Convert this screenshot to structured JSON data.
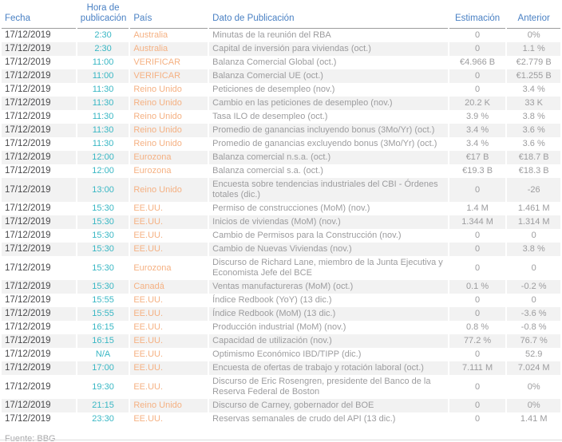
{
  "colors": {
    "header_text": "#4A81C4",
    "time_text": "#39B7C4",
    "country_text": "#F5B183",
    "date_text": "#4A4A4C",
    "body_text": "#9C9C9E",
    "row_stripe": "#F2F2F2",
    "header_rule": "#9B9B9B",
    "footer_text": "#A9A9AB"
  },
  "footer": {
    "source_label": "Fuente: BBG"
  },
  "table": {
    "columns": [
      {
        "key": "fecha",
        "label": "Fecha"
      },
      {
        "key": "hora",
        "label": "Hora de publicación"
      },
      {
        "key": "pais",
        "label": "País"
      },
      {
        "key": "dato",
        "label": "Dato de Publicación"
      },
      {
        "key": "estimacion",
        "label": "Estimación"
      },
      {
        "key": "anterior",
        "label": "Anterior"
      }
    ],
    "rows": [
      {
        "fecha": "17/12/2019",
        "hora": "2:30",
        "pais": "Australia",
        "dato": "Minutas de la reunión del RBA",
        "estimacion": "0",
        "anterior": "0%"
      },
      {
        "fecha": "17/12/2019",
        "hora": "2:30",
        "pais": "Australia",
        "dato": "Capital de inversión para viviendas (oct.)",
        "estimacion": "0",
        "anterior": "1.1 %"
      },
      {
        "fecha": "17/12/2019",
        "hora": "11:00",
        "pais": "VERIFICAR",
        "dato": "Balanza Comercial Global (oct.)",
        "estimacion": "€4.966 B",
        "anterior": "€2.779 B"
      },
      {
        "fecha": "17/12/2019",
        "hora": "11:00",
        "pais": "VERIFICAR",
        "dato": "Balanza Comercial UE (oct.)",
        "estimacion": "0",
        "anterior": "€1.255 B"
      },
      {
        "fecha": "17/12/2019",
        "hora": "11:30",
        "pais": "Reino Unido",
        "dato": "Peticiones de desempleo (nov.)",
        "estimacion": "0",
        "anterior": "3.4 %"
      },
      {
        "fecha": "17/12/2019",
        "hora": "11:30",
        "pais": "Reino Unido",
        "dato": "Cambio en las peticiones de desempleo (nov.)",
        "estimacion": "20.2 K",
        "anterior": "33 K"
      },
      {
        "fecha": "17/12/2019",
        "hora": "11:30",
        "pais": "Reino Unido",
        "dato": "Tasa ILO de desempleo (oct.)",
        "estimacion": "3.9 %",
        "anterior": "3.8 %"
      },
      {
        "fecha": "17/12/2019",
        "hora": "11:30",
        "pais": "Reino Unido",
        "dato": "Promedio de ganancias incluyendo bonus (3Mo/Yr) (oct.)",
        "estimacion": "3.4 %",
        "anterior": "3.6 %"
      },
      {
        "fecha": "17/12/2019",
        "hora": "11:30",
        "pais": "Reino Unido",
        "dato": "Promedio de ganancias excluyendo bonus (3Mo/Yr) (oct.)",
        "estimacion": "3.4 %",
        "anterior": "3.6 %"
      },
      {
        "fecha": "17/12/2019",
        "hora": "12:00",
        "pais": "Eurozona",
        "dato": "Balanza comercial n.s.a. (oct.)",
        "estimacion": "€17 B",
        "anterior": "€18.7 B"
      },
      {
        "fecha": "17/12/2019",
        "hora": "12:00",
        "pais": "Eurozona",
        "dato": "Balanza comercial s.a. (oct.)",
        "estimacion": "€19.3 B",
        "anterior": "€18.3 B"
      },
      {
        "fecha": "17/12/2019",
        "hora": "13:00",
        "pais": "Reino Unido",
        "dato": "Encuesta sobre tendencias industriales del CBI - Órdenes totales (dic.)",
        "estimacion": "0",
        "anterior": "-26"
      },
      {
        "fecha": "17/12/2019",
        "hora": "15:30",
        "pais": "EE.UU.",
        "dato": "Permiso de construcciones (MoM) (nov.)",
        "estimacion": "1.4 M",
        "anterior": "1.461 M"
      },
      {
        "fecha": "17/12/2019",
        "hora": "15:30",
        "pais": "EE.UU.",
        "dato": "Inicios de viviendas (MoM) (nov.)",
        "estimacion": "1.344 M",
        "anterior": "1.314 M"
      },
      {
        "fecha": "17/12/2019",
        "hora": "15:30",
        "pais": "EE.UU.",
        "dato": "Cambio de Permisos para la Construcción (nov.)",
        "estimacion": "0",
        "anterior": "0"
      },
      {
        "fecha": "17/12/2019",
        "hora": "15:30",
        "pais": "EE.UU.",
        "dato": "Cambio de Nuevas Viviendas (nov.)",
        "estimacion": "0",
        "anterior": "3.8 %"
      },
      {
        "fecha": "17/12/2019",
        "hora": "15:30",
        "pais": "Eurozona",
        "dato": "Discurso de Richard Lane, miembro de la Junta Ejecutiva y Economista Jefe del BCE",
        "estimacion": "0",
        "anterior": "0"
      },
      {
        "fecha": "17/12/2019",
        "hora": "15:30",
        "pais": "Canadá",
        "dato": "Ventas manufactureras (MoM) (oct.)",
        "estimacion": "0.1 %",
        "anterior": "-0.2 %"
      },
      {
        "fecha": "17/12/2019",
        "hora": "15:55",
        "pais": "EE.UU.",
        "dato": "Índice Redbook (YoY) (13 dic.)",
        "estimacion": "0",
        "anterior": "0"
      },
      {
        "fecha": "17/12/2019",
        "hora": "15:55",
        "pais": "EE.UU.",
        "dato": "Índice Redbook (MoM) (13 dic.)",
        "estimacion": "0",
        "anterior": "-3.6 %"
      },
      {
        "fecha": "17/12/2019",
        "hora": "16:15",
        "pais": "EE.UU.",
        "dato": "Producción industrial (MoM) (nov.)",
        "estimacion": "0.8 %",
        "anterior": "-0.8 %"
      },
      {
        "fecha": "17/12/2019",
        "hora": "16:15",
        "pais": "EE.UU.",
        "dato": "Capacidad de utilización (nov.)",
        "estimacion": "77.2 %",
        "anterior": "76.7 %"
      },
      {
        "fecha": "17/12/2019",
        "hora": "N/A",
        "pais": "EE.UU.",
        "dato": "Optimismo Económico IBD/TIPP (dic.)",
        "estimacion": "0",
        "anterior": "52.9"
      },
      {
        "fecha": "17/12/2019",
        "hora": "17:00",
        "pais": "EE.UU.",
        "dato": "Encuesta de ofertas de trabajo y rotación laboral (oct.)",
        "estimacion": "7.111 M",
        "anterior": "7.024 M"
      },
      {
        "fecha": "17/12/2019",
        "hora": "19:30",
        "pais": "EE.UU.",
        "dato": "Discurso de Eric Rosengren, presidente del Banco de la Reserva Federal de Boston",
        "estimacion": "0",
        "anterior": "0%"
      },
      {
        "fecha": "17/12/2019",
        "hora": "21:15",
        "pais": "Reino Unido",
        "dato": "Discurso de Carney, gobernador del BOE",
        "estimacion": "0",
        "anterior": "0%"
      },
      {
        "fecha": "17/12/2019",
        "hora": "23:30",
        "pais": "EE.UU.",
        "dato": "Reservas semanales de crudo del API (13 dic.)",
        "estimacion": "0",
        "anterior": "1.41 M"
      }
    ]
  }
}
